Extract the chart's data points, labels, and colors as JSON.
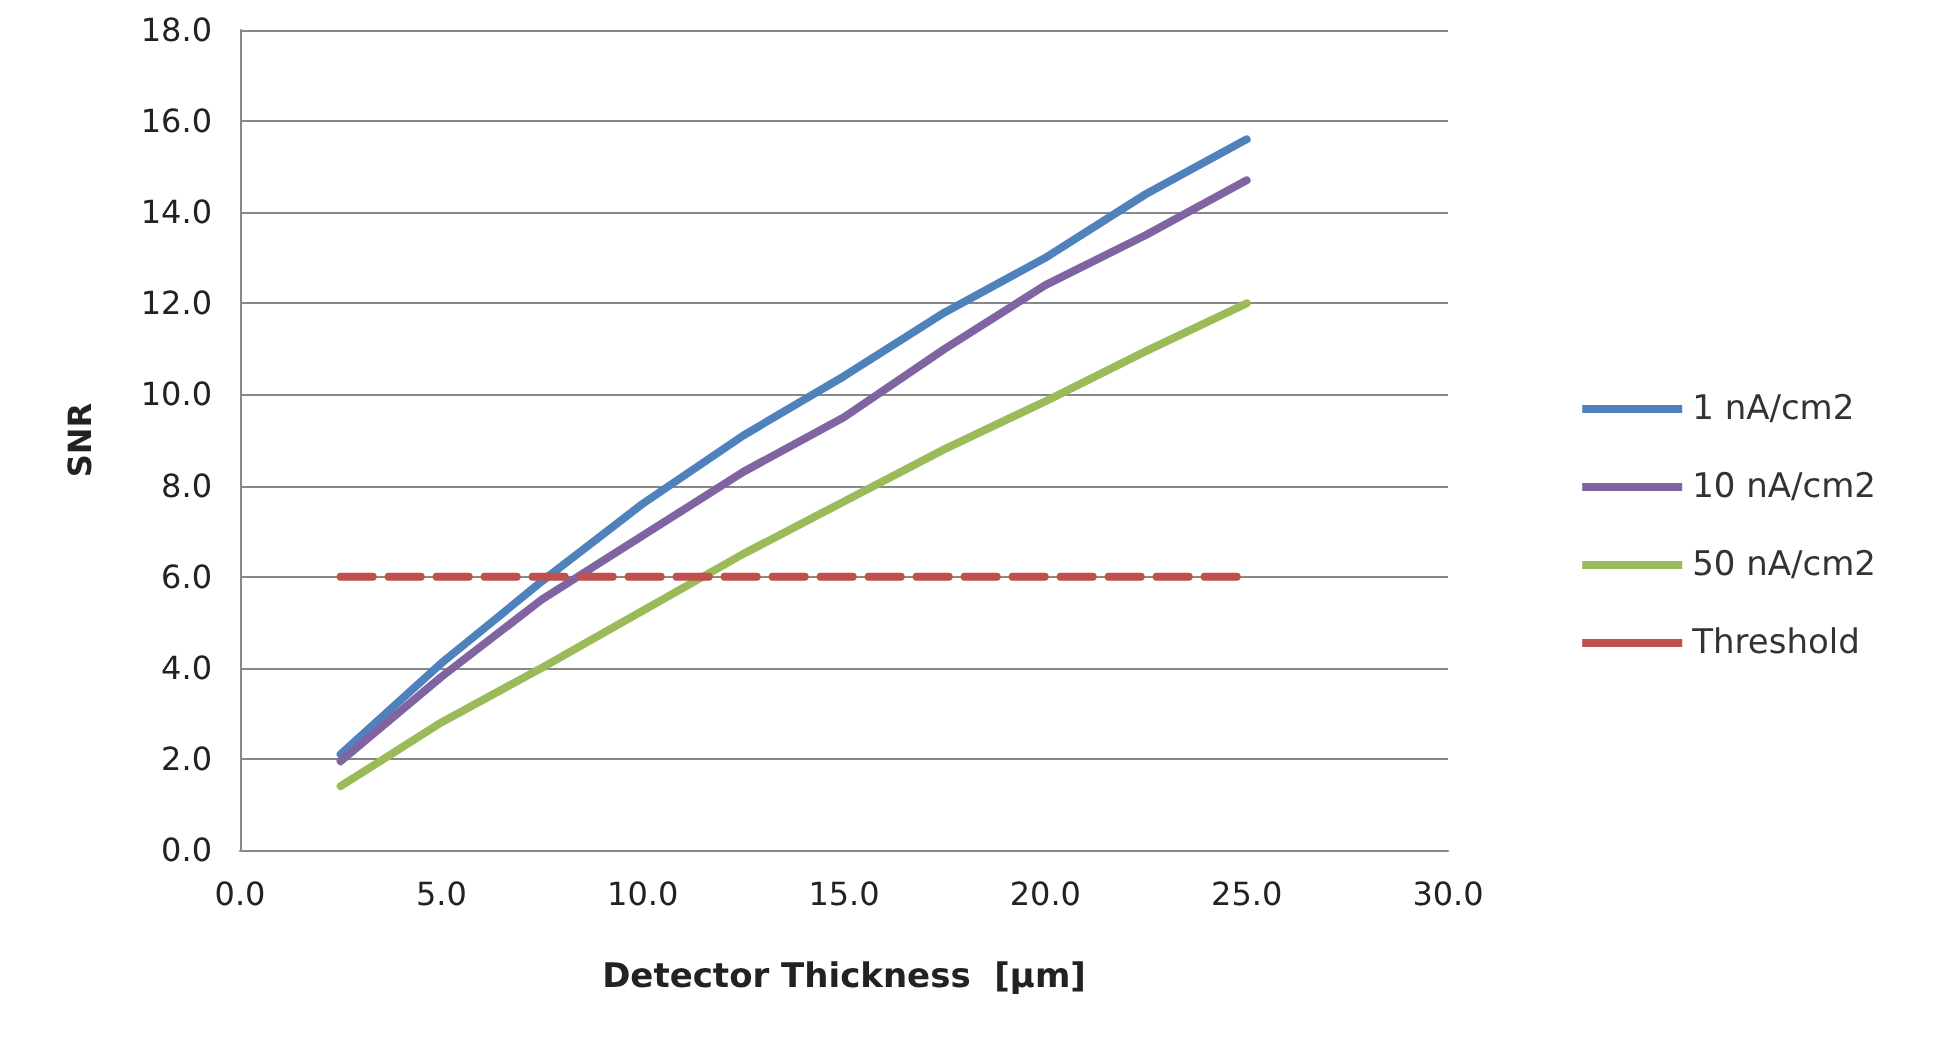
{
  "chart_data": {
    "type": "line",
    "xlabel": "Detector Thickness  [µm]",
    "ylabel": "SNR",
    "xlim": [
      0,
      30
    ],
    "xticks": [
      {
        "value": 0,
        "label": "0.0"
      },
      {
        "value": 5,
        "label": "5.0"
      },
      {
        "value": 10,
        "label": "10.0"
      },
      {
        "value": 15,
        "label": "15.0"
      },
      {
        "value": 20,
        "label": "20.0"
      },
      {
        "value": 25,
        "label": "25.0"
      },
      {
        "value": 30,
        "label": "30.0"
      }
    ],
    "ylim": [
      0,
      18
    ],
    "yticks": [
      {
        "value": 0,
        "label": "0.0"
      },
      {
        "value": 2,
        "label": "2.0"
      },
      {
        "value": 4,
        "label": "4.0"
      },
      {
        "value": 6,
        "label": "6.0"
      },
      {
        "value": 8,
        "label": "8.0"
      },
      {
        "value": 10,
        "label": "10.0"
      },
      {
        "value": 12,
        "label": "12.0"
      },
      {
        "value": 14,
        "label": "14.0"
      },
      {
        "value": 16,
        "label": "16.0"
      },
      {
        "value": 18,
        "label": "18.0"
      }
    ],
    "grid": "y",
    "legend": "right",
    "marker": "none",
    "x": [
      2.5,
      5,
      7.5,
      10,
      12.5,
      15,
      17.5,
      20,
      22.5,
      25
    ],
    "series": [
      {
        "name": "1 nA/cm2",
        "color": "#4f81bd",
        "values": [
          2.1,
          4.1,
          5.9,
          7.6,
          9.1,
          10.4,
          11.8,
          13.0,
          14.4,
          15.6
        ]
      },
      {
        "name": "10 nA/cm2",
        "color": "#8064a2",
        "values": [
          1.95,
          3.8,
          5.5,
          6.9,
          8.3,
          9.5,
          11.0,
          12.4,
          13.5,
          14.7
        ]
      },
      {
        "name": "50 nA/cm2",
        "color": "#9bbb59",
        "values": [
          1.4,
          2.8,
          4.0,
          5.25,
          6.5,
          7.65,
          8.8,
          9.85,
          10.95,
          12.0
        ]
      },
      {
        "name": "Threshold",
        "color": "#c0504d",
        "line_style": "dashed",
        "x": [
          2.5,
          25
        ],
        "values": [
          6,
          6
        ]
      }
    ]
  }
}
